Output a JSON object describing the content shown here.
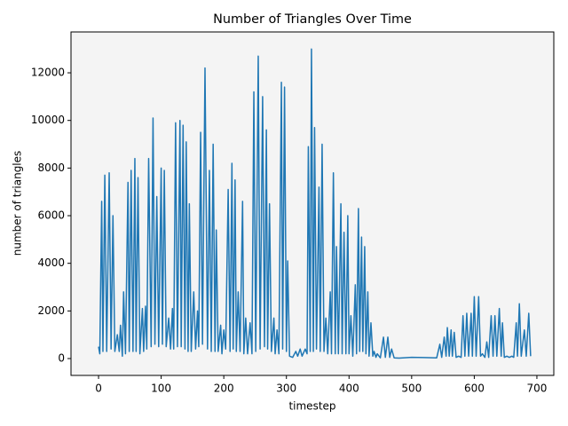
{
  "chart_data": {
    "type": "line",
    "title": "Number of Triangles Over Time",
    "x_label": "timestep",
    "y_label": "number of triangles",
    "x": [
      0,
      2,
      5,
      7,
      10,
      13,
      17,
      20,
      23,
      26,
      30,
      33,
      35,
      38,
      40,
      43,
      47,
      49,
      52,
      55,
      58,
      60,
      63,
      66,
      70,
      72,
      75,
      77,
      80,
      84,
      87,
      90,
      93,
      96,
      100,
      102,
      105,
      108,
      112,
      115,
      118,
      120,
      123,
      126,
      130,
      132,
      135,
      138,
      140,
      143,
      145,
      148,
      152,
      155,
      158,
      160,
      163,
      166,
      170,
      174,
      177,
      180,
      183,
      186,
      188,
      191,
      195,
      197,
      200,
      203,
      207,
      210,
      213,
      215,
      218,
      220,
      223,
      226,
      230,
      232,
      235,
      238,
      242,
      245,
      248,
      251,
      255,
      258,
      262,
      265,
      268,
      270,
      273,
      276,
      280,
      282,
      285,
      288,
      292,
      294,
      297,
      300,
      302,
      305,
      310,
      315,
      318,
      322,
      325,
      330,
      333,
      335,
      338,
      340,
      343,
      345,
      348,
      352,
      354,
      357,
      360,
      363,
      366,
      370,
      372,
      375,
      378,
      380,
      383,
      387,
      389,
      392,
      395,
      398,
      400,
      403,
      406,
      410,
      412,
      415,
      417,
      420,
      422,
      425,
      427,
      430,
      432,
      435,
      438,
      440,
      443,
      445,
      450,
      455,
      458,
      462,
      465,
      468,
      472,
      480,
      500,
      520,
      540,
      545,
      548,
      552,
      555,
      557,
      560,
      563,
      565,
      568,
      571,
      575,
      579,
      582,
      585,
      588,
      591,
      595,
      597,
      600,
      603,
      607,
      610,
      613,
      617,
      620,
      623,
      627,
      630,
      633,
      636,
      640,
      643,
      645,
      648,
      652,
      656,
      660,
      663,
      667,
      669,
      672,
      675,
      680,
      683,
      687,
      690
    ],
    "series": [
      {
        "name": "triangles",
        "color": "#1f77b4",
        "values": [
          500,
          200,
          6600,
          300,
          7700,
          300,
          7800,
          400,
          6000,
          300,
          1000,
          300,
          1400,
          100,
          2800,
          200,
          7400,
          300,
          7900,
          300,
          8400,
          300,
          7600,
          200,
          2100,
          300,
          2200,
          400,
          8400,
          500,
          10100,
          600,
          6800,
          500,
          8000,
          600,
          7900,
          500,
          1700,
          400,
          2100,
          400,
          9900,
          500,
          10000,
          500,
          9800,
          400,
          9100,
          300,
          6500,
          300,
          2800,
          400,
          2000,
          500,
          9500,
          600,
          12200,
          400,
          7900,
          300,
          9000,
          300,
          5400,
          300,
          1400,
          200,
          1200,
          400,
          7100,
          300,
          8200,
          400,
          7500,
          300,
          2800,
          300,
          6600,
          200,
          1700,
          200,
          1500,
          200,
          11200,
          300,
          12700,
          400,
          11000,
          500,
          9600,
          400,
          6500,
          300,
          1700,
          200,
          1200,
          200,
          11600,
          400,
          11400,
          300,
          4100,
          100,
          50,
          300,
          100,
          400,
          100,
          400,
          200,
          8900,
          300,
          13000,
          300,
          9700,
          400,
          7200,
          300,
          9000,
          300,
          1700,
          200,
          2800,
          200,
          7800,
          200,
          4700,
          200,
          6500,
          200,
          5300,
          200,
          6000,
          200,
          1800,
          100,
          3100,
          200,
          6300,
          300,
          5100,
          300,
          4700,
          200,
          2800,
          100,
          1500,
          100,
          300,
          50,
          200,
          30,
          900,
          50,
          900,
          50,
          400,
          30,
          20,
          50,
          40,
          30,
          600,
          50,
          900,
          100,
          1300,
          100,
          1200,
          100,
          1100,
          50,
          100,
          50,
          1800,
          100,
          1900,
          100,
          1900,
          100,
          2600,
          100,
          2600,
          100,
          200,
          50,
          700,
          50,
          1800,
          100,
          1800,
          100,
          2100,
          100,
          1500,
          50,
          100,
          50,
          100,
          50,
          1500,
          100,
          2300,
          100,
          1200,
          100,
          1900,
          100
        ]
      }
    ],
    "xlim": [
      -44,
      727
    ],
    "ylim": [
      -708,
      13716
    ],
    "xticks": [
      0,
      100,
      200,
      300,
      400,
      500,
      600,
      700
    ],
    "yticks": [
      0,
      2000,
      4000,
      6000,
      8000,
      10000,
      12000
    ],
    "background": "#f4f4f4"
  }
}
